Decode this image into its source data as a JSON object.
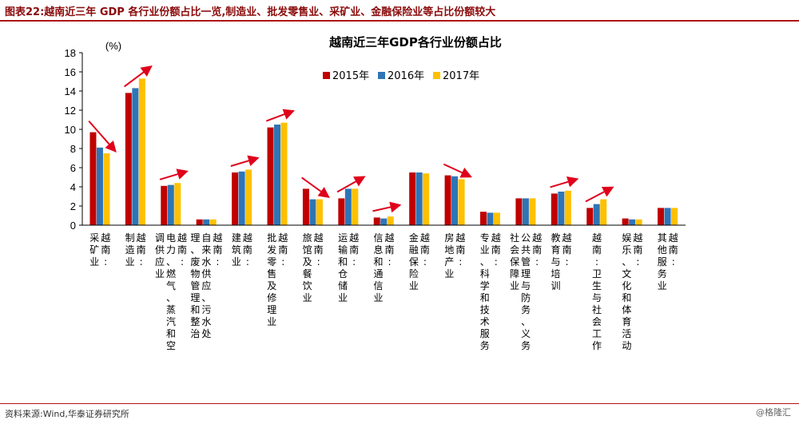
{
  "header": {
    "title": "图表22:越南近三年 GDP 各行业份额占比一览,制造业、批发零售业、采矿业、金融保险业等占比份额较大"
  },
  "source_note": "资料来源:Wind,华泰证券研究所",
  "watermark": "@格隆汇",
  "colors": {
    "s2015": "#c00000",
    "s2016": "#2e75b6",
    "s2017": "#ffc000",
    "arrow": "#e0001b",
    "accent": "#b01515"
  },
  "chart_data": {
    "type": "bar",
    "title": "越南近三年GDP各行业份额占比",
    "ylabel": "(%)",
    "xlabel": "",
    "ylim": [
      0,
      18
    ],
    "yticks": [
      "0",
      "2",
      "4",
      "6",
      "8",
      "10",
      "12",
      "14",
      "16",
      "18"
    ],
    "legend_position": "top",
    "grid": false,
    "categories": [
      [
        "越南:",
        "采矿业"
      ],
      [
        "越南:",
        "制造业"
      ],
      [
        "越南:",
        "电力、燃气、蒸汽和空",
        "调供应业"
      ],
      [
        "越南:",
        "自来水供应、污水处",
        "理、废物管理和整治"
      ],
      [
        "越南:",
        "建筑业"
      ],
      [
        "越南:",
        "批发零售及修理业"
      ],
      [
        "越南:",
        "旅馆及餐饮业"
      ],
      [
        "越南:",
        "运输和仓储业"
      ],
      [
        "越南:",
        "信息和通信业"
      ],
      [
        "越南:",
        "金融保险业"
      ],
      [
        "越南:",
        "房地产业"
      ],
      [
        "越南:",
        "专业、科学和技术服务"
      ],
      [
        "越南:",
        "公共管理与防务、义务",
        "社会保障业"
      ],
      [
        "越南:",
        "教育与培训"
      ],
      [
        "越南:卫生与社会工作"
      ],
      [
        "越南:",
        "娱乐、文化和体育活动"
      ],
      [
        "越南:",
        "其他服务业"
      ]
    ],
    "series": [
      {
        "name": "2015年",
        "values": [
          9.7,
          13.8,
          4.1,
          0.6,
          5.5,
          10.2,
          3.8,
          2.8,
          0.8,
          5.5,
          5.2,
          1.4,
          2.8,
          3.3,
          1.8,
          0.7,
          1.8
        ]
      },
      {
        "name": "2016年",
        "values": [
          8.1,
          14.3,
          4.2,
          0.6,
          5.6,
          10.5,
          2.7,
          3.8,
          0.7,
          5.5,
          5.1,
          1.3,
          2.8,
          3.5,
          2.2,
          0.6,
          1.8
        ]
      },
      {
        "name": "2017年",
        "values": [
          7.5,
          15.3,
          4.4,
          0.6,
          5.8,
          10.7,
          2.7,
          3.8,
          0.9,
          5.4,
          4.8,
          1.3,
          2.8,
          3.6,
          2.7,
          0.6,
          1.8
        ]
      }
    ],
    "trend_arrows": [
      "down",
      "up",
      "up",
      "none",
      "up",
      "up",
      "down",
      "up",
      "up",
      "none",
      "down",
      "none",
      "none",
      "up",
      "up",
      "none",
      "none"
    ]
  }
}
